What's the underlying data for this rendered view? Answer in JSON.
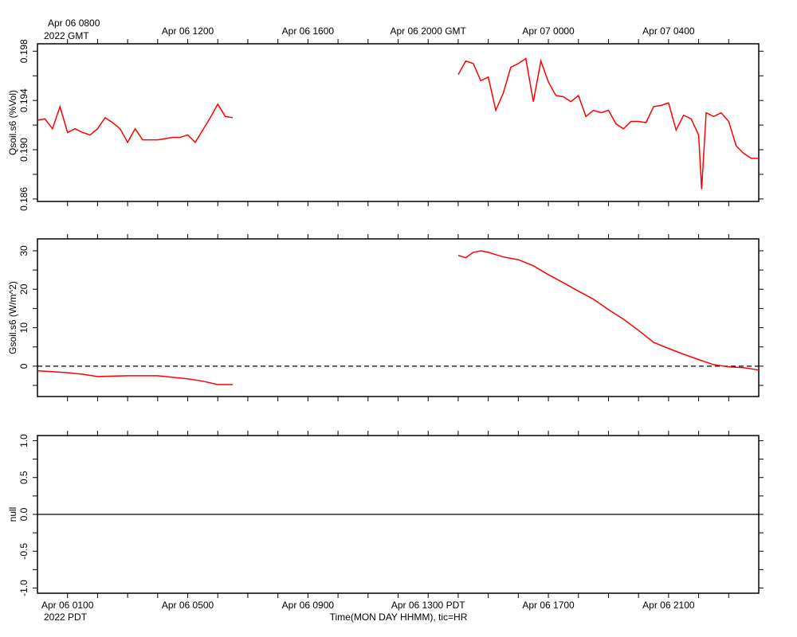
{
  "chart_data": [
    {
      "type": "line",
      "ylabel": "Qsoil.s6 (%Vol)",
      "xlim": [
        0,
        24
      ],
      "xminor": [
        1,
        2,
        3,
        4,
        5,
        6,
        7,
        8,
        9,
        10,
        11,
        12,
        13,
        14,
        15,
        16,
        17,
        18,
        19,
        20,
        21,
        22,
        23
      ],
      "x2ticks": [
        {
          "value": 1,
          "label": "Apr 06 0800"
        },
        {
          "value": 5,
          "label": "Apr 06 1200"
        },
        {
          "value": 9,
          "label": "Apr 06 1600"
        },
        {
          "value": 13,
          "label": "Apr 06 2000 GMT"
        },
        {
          "value": 17,
          "label": "Apr 07 0000"
        },
        {
          "value": 21,
          "label": "Apr 07 0400"
        }
      ],
      "x2note": "2022 GMT",
      "ylim": [
        0.1858,
        0.1986
      ],
      "yticks": [
        0.186,
        {
          "value": 0.19,
          "label": "0.190"
        },
        0.194,
        0.198
      ],
      "yminor": [
        0.188,
        0.192,
        0.196
      ],
      "series": [
        {
          "name": "Qsoil.s6",
          "color": "#ff0000",
          "x": [
            0,
            0.25,
            0.5,
            0.75,
            1,
            1.25,
            1.5,
            1.75,
            2,
            2.25,
            2.5,
            2.75,
            3,
            3.25,
            3.5,
            3.75,
            4,
            4.25,
            4.5,
            4.75,
            5,
            5.25,
            5.5,
            5.75,
            6,
            6.25,
            6.5,
            10,
            14,
            14.25,
            14.5,
            14.75,
            15,
            15.25,
            15.5,
            15.75,
            16,
            16.25,
            16.5,
            16.75,
            17,
            17.25,
            17.5,
            17.75,
            18,
            18.25,
            18.5,
            18.75,
            19,
            19.25,
            19.5,
            19.75,
            20,
            20.25,
            20.5,
            20.75,
            21,
            21.25,
            21.5,
            21.75,
            22,
            22.1,
            22.25,
            22.5,
            22.75,
            23,
            23.25,
            23.5,
            23.75,
            24
          ],
          "values": [
            0.1924,
            0.1925,
            0.1917,
            0.1935,
            0.1914,
            0.1917,
            0.1914,
            0.1912,
            0.1917,
            0.1926,
            0.1922,
            0.1917,
            0.1906,
            0.1917,
            0.1908,
            0.1908,
            0.1908,
            0.1909,
            0.191,
            0.191,
            0.1912,
            0.1906,
            0.1916,
            0.1926,
            0.1937,
            0.1927,
            0.1926,
            null,
            0.1961,
            0.1972,
            0.197,
            0.1956,
            0.1959,
            0.1932,
            0.1946,
            0.1967,
            0.197,
            0.1974,
            0.1939,
            0.1972,
            0.1955,
            0.1944,
            0.1943,
            0.1939,
            0.1944,
            0.1927,
            0.1932,
            0.193,
            0.1932,
            0.1921,
            0.1917,
            0.1923,
            0.1923,
            0.1922,
            0.1935,
            0.1936,
            0.1938,
            0.1916,
            0.1928,
            0.1925,
            0.1912,
            0.1868,
            0.193,
            0.1927,
            0.193,
            0.1923,
            0.1903,
            0.1897,
            0.1893,
            0.1893
          ]
        }
      ]
    },
    {
      "type": "line",
      "ylabel": "Gsoil.s6 (W/m^2)",
      "xlim": [
        0,
        24
      ],
      "xminor": [
        1,
        2,
        3,
        4,
        5,
        6,
        7,
        8,
        9,
        10,
        11,
        12,
        13,
        14,
        15,
        16,
        17,
        18,
        19,
        20,
        21,
        22,
        23
      ],
      "ylim": [
        -7.9,
        33.1
      ],
      "yticks": [
        0,
        10,
        20,
        30
      ],
      "yminor": [
        -5,
        5,
        15,
        25
      ],
      "zero_line": "dashed",
      "series": [
        {
          "name": "Gsoil.s6",
          "color": "#ff0000",
          "x": [
            0,
            1,
            1.5,
            2,
            3,
            4,
            4.5,
            5,
            5.5,
            6,
            6.25,
            6.5,
            10,
            14,
            14.25,
            14.5,
            14.75,
            15,
            15.25,
            15.5,
            16,
            16.5,
            17,
            17.5,
            18,
            18.5,
            19,
            19.5,
            20,
            20.5,
            21,
            21.5,
            22,
            22.5,
            23,
            23.5,
            24
          ],
          "values": [
            -1.2,
            -1.7,
            -2.1,
            -2.7,
            -2.5,
            -2.5,
            -2.9,
            -3.3,
            -3.9,
            -4.8,
            -4.8,
            -4.8,
            null,
            28.8,
            28.2,
            29.6,
            30,
            29.6,
            29,
            28.4,
            27.7,
            26.1,
            23.8,
            21.7,
            19.5,
            17.4,
            14.7,
            12.2,
            9.3,
            6.2,
            4.6,
            3.1,
            1.7,
            0.4,
            -0.2,
            -0.4,
            -1
          ]
        }
      ]
    },
    {
      "type": "line",
      "ylabel": "null",
      "xlim": [
        0,
        24
      ],
      "xminor": [
        1,
        2,
        3,
        4,
        5,
        6,
        7,
        8,
        9,
        10,
        11,
        12,
        13,
        14,
        15,
        16,
        17,
        18,
        19,
        20,
        21,
        22,
        23
      ],
      "xticks": [
        {
          "value": 1,
          "label": "Apr 06 0100"
        },
        {
          "value": 5,
          "label": "Apr 06 0500"
        },
        {
          "value": 9,
          "label": "Apr 06 0900"
        },
        {
          "value": 13,
          "label": "Apr 06 1300 PDT"
        },
        {
          "value": 17,
          "label": "Apr 06 1700"
        },
        {
          "value": 21,
          "label": "Apr 06 2100"
        }
      ],
      "xnote": "2022 PDT",
      "xlabel": "Time(MON DAY HHMM), tic=HR",
      "ylim": [
        -1.07,
        1.07
      ],
      "yticks": [
        {
          "value": -1,
          "label": "-1.0"
        },
        {
          "value": -0.5,
          "label": "-0.5"
        },
        {
          "value": 0,
          "label": "0.0"
        },
        {
          "value": 0.5,
          "label": "0.5"
        },
        {
          "value": 1,
          "label": "1.0"
        }
      ],
      "yminor": [
        -0.75,
        -0.25,
        0.25,
        0.75
      ],
      "zero_line": "solid",
      "series": []
    }
  ]
}
